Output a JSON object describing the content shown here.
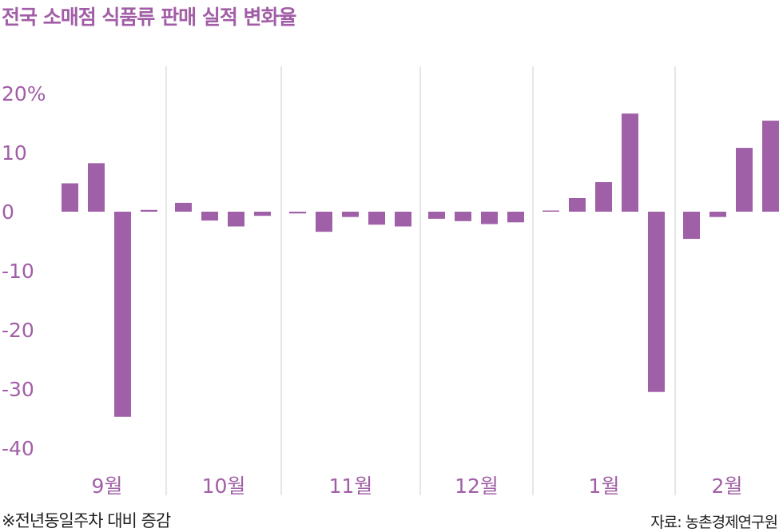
{
  "title": "전국 소매점 식품류 판매 실적 변화율",
  "note": "※전년동일주차 대비 증감",
  "source": "자료: 농촌경제연구원",
  "colors": {
    "bar": "#a060a8",
    "title": "#a15ea6",
    "axis_text": "#a15ea6",
    "grid": "#cccccc"
  },
  "chart_data": {
    "type": "bar",
    "ylim": [
      -40,
      20
    ],
    "y_ticks": [
      "20%",
      "10",
      "0",
      "-10",
      "-20",
      "-30",
      "-40"
    ],
    "grid": false,
    "groups": [
      {
        "label": "9월",
        "values": [
          4.8,
          8.2,
          -34.7,
          0.3
        ]
      },
      {
        "label": "10월",
        "values": [
          1.5,
          -1.5,
          -2.5,
          -0.7
        ]
      },
      {
        "label": "11월",
        "values": [
          -0.3,
          -3.4,
          -0.9,
          -2.2,
          -2.5
        ]
      },
      {
        "label": "12월",
        "values": [
          -1.2,
          -1.6,
          -2.1,
          -1.8
        ]
      },
      {
        "label": "1월",
        "values": [
          0.2,
          2.3,
          5.0,
          16.6,
          -30.5
        ]
      },
      {
        "label": "2월",
        "values": [
          -4.6,
          -0.9,
          10.8,
          15.4
        ]
      }
    ]
  }
}
